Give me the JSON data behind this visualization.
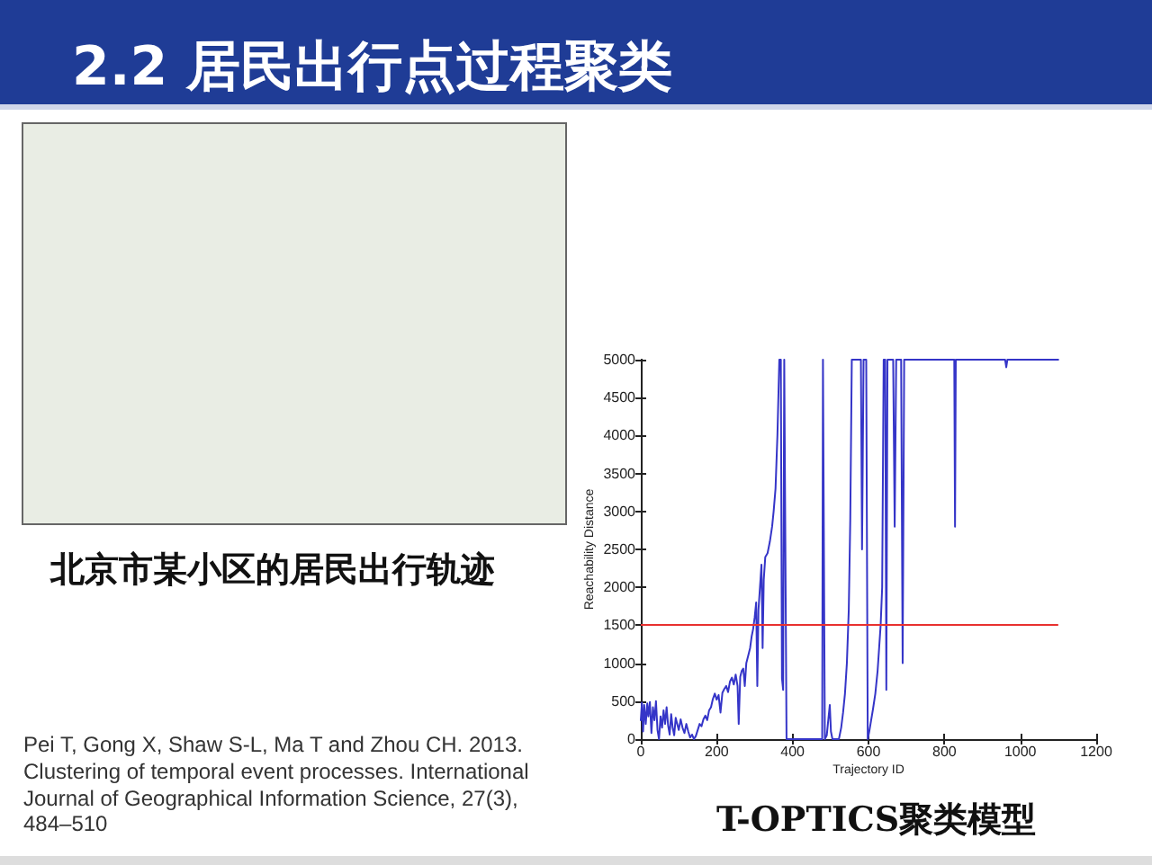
{
  "chart_data": {
    "type": "line",
    "title": "2.2 居民出行点过程聚类",
    "xlabel": "Trajectory ID",
    "ylabel": "Reachability Distance",
    "annotations": [
      "北京市某小区的居民出行轨迹",
      "Pei T, Gong X, Shaw S-L, Ma T and Zhou CH. 2013. Clustering of temporal event processes. International Journal of Geographical Information Science, 27(3), 484–510",
      "T-OPTICS聚类模型"
    ],
    "series": [
      {
        "color": "#3535c8",
        "x": [
          0,
          3,
          6,
          9,
          13,
          17,
          20,
          24,
          28,
          32,
          36,
          40,
          44,
          48,
          52,
          56,
          60,
          64,
          68,
          72,
          76,
          80,
          84,
          88,
          92,
          96,
          100,
          105,
          110,
          115,
          120,
          125,
          130,
          135,
          140,
          145,
          150,
          155,
          160,
          165,
          170,
          175,
          180,
          185,
          190,
          195,
          200,
          205,
          210,
          215,
          220,
          225,
          230,
          235,
          240,
          245,
          250,
          255,
          258,
          262,
          266,
          270,
          274,
          278,
          283,
          288,
          292,
          296,
          300,
          304,
          307,
          310,
          314,
          318,
          321,
          324,
          328,
          334,
          340,
          346,
          350,
          355,
          360,
          365,
          369,
          372,
          375,
          378,
          381,
          384,
          400,
          420,
          440,
          460,
          478,
          480,
          483,
          485,
          490,
          495,
          498,
          501,
          505,
          515,
          522,
          528,
          533,
          538,
          543,
          548,
          552,
          556,
          580,
          583,
          587,
          594,
          598,
          602,
          607,
          612,
          618,
          624,
          628,
          632,
          636,
          640,
          644,
          647,
          650,
          665,
          669,
          673,
          686,
          690,
          694,
          700,
          750,
          800,
          826,
          828,
          830,
          900,
          960,
          963,
          966,
          1000,
          1050,
          1100
        ],
        "values": [
          250,
          480,
          100,
          450,
          200,
          470,
          300,
          490,
          80,
          420,
          250,
          500,
          120,
          0,
          300,
          150,
          380,
          200,
          420,
          180,
          60,
          330,
          150,
          50,
          280,
          200,
          120,
          260,
          150,
          80,
          200,
          100,
          20,
          60,
          0,
          40,
          120,
          200,
          170,
          260,
          310,
          250,
          380,
          420,
          530,
          600,
          520,
          580,
          350,
          610,
          660,
          700,
          620,
          760,
          810,
          720,
          850,
          700,
          200,
          820,
          900,
          930,
          700,
          1000,
          1100,
          1200,
          1350,
          1450,
          1600,
          1800,
          700,
          1700,
          2000,
          2300,
          1200,
          2100,
          2400,
          2450,
          2600,
          2800,
          3000,
          3300,
          4000,
          5000,
          5000,
          800,
          650,
          5000,
          5000,
          0,
          0,
          0,
          0,
          0,
          0,
          5000,
          5000,
          0,
          50,
          300,
          450,
          100,
          0,
          0,
          0,
          150,
          350,
          600,
          1000,
          1700,
          2900,
          5000,
          5000,
          2500,
          5000,
          5000,
          0,
          100,
          250,
          400,
          600,
          900,
          1200,
          1500,
          2000,
          5000,
          5000,
          650,
          5000,
          5000,
          2800,
          5000,
          5000,
          1000,
          5000,
          5000,
          5000,
          5000,
          5000,
          2800,
          5000,
          5000,
          5000,
          4900,
          5000,
          5000,
          5000,
          5000
        ]
      }
    ],
    "xlim": [
      0,
      1200
    ],
    "xticks": [
      0,
      200,
      400,
      600,
      800,
      1000,
      1200
    ],
    "ylim": [
      0,
      5000
    ],
    "yticks": [
      0,
      500,
      1000,
      1500,
      2000,
      2500,
      3000,
      3500,
      4000,
      4500,
      5000
    ],
    "ref_lines": [
      {
        "axis": "y",
        "value": 1500,
        "color": "#e8312f"
      }
    ],
    "marker": "none",
    "line_style": "solid"
  }
}
